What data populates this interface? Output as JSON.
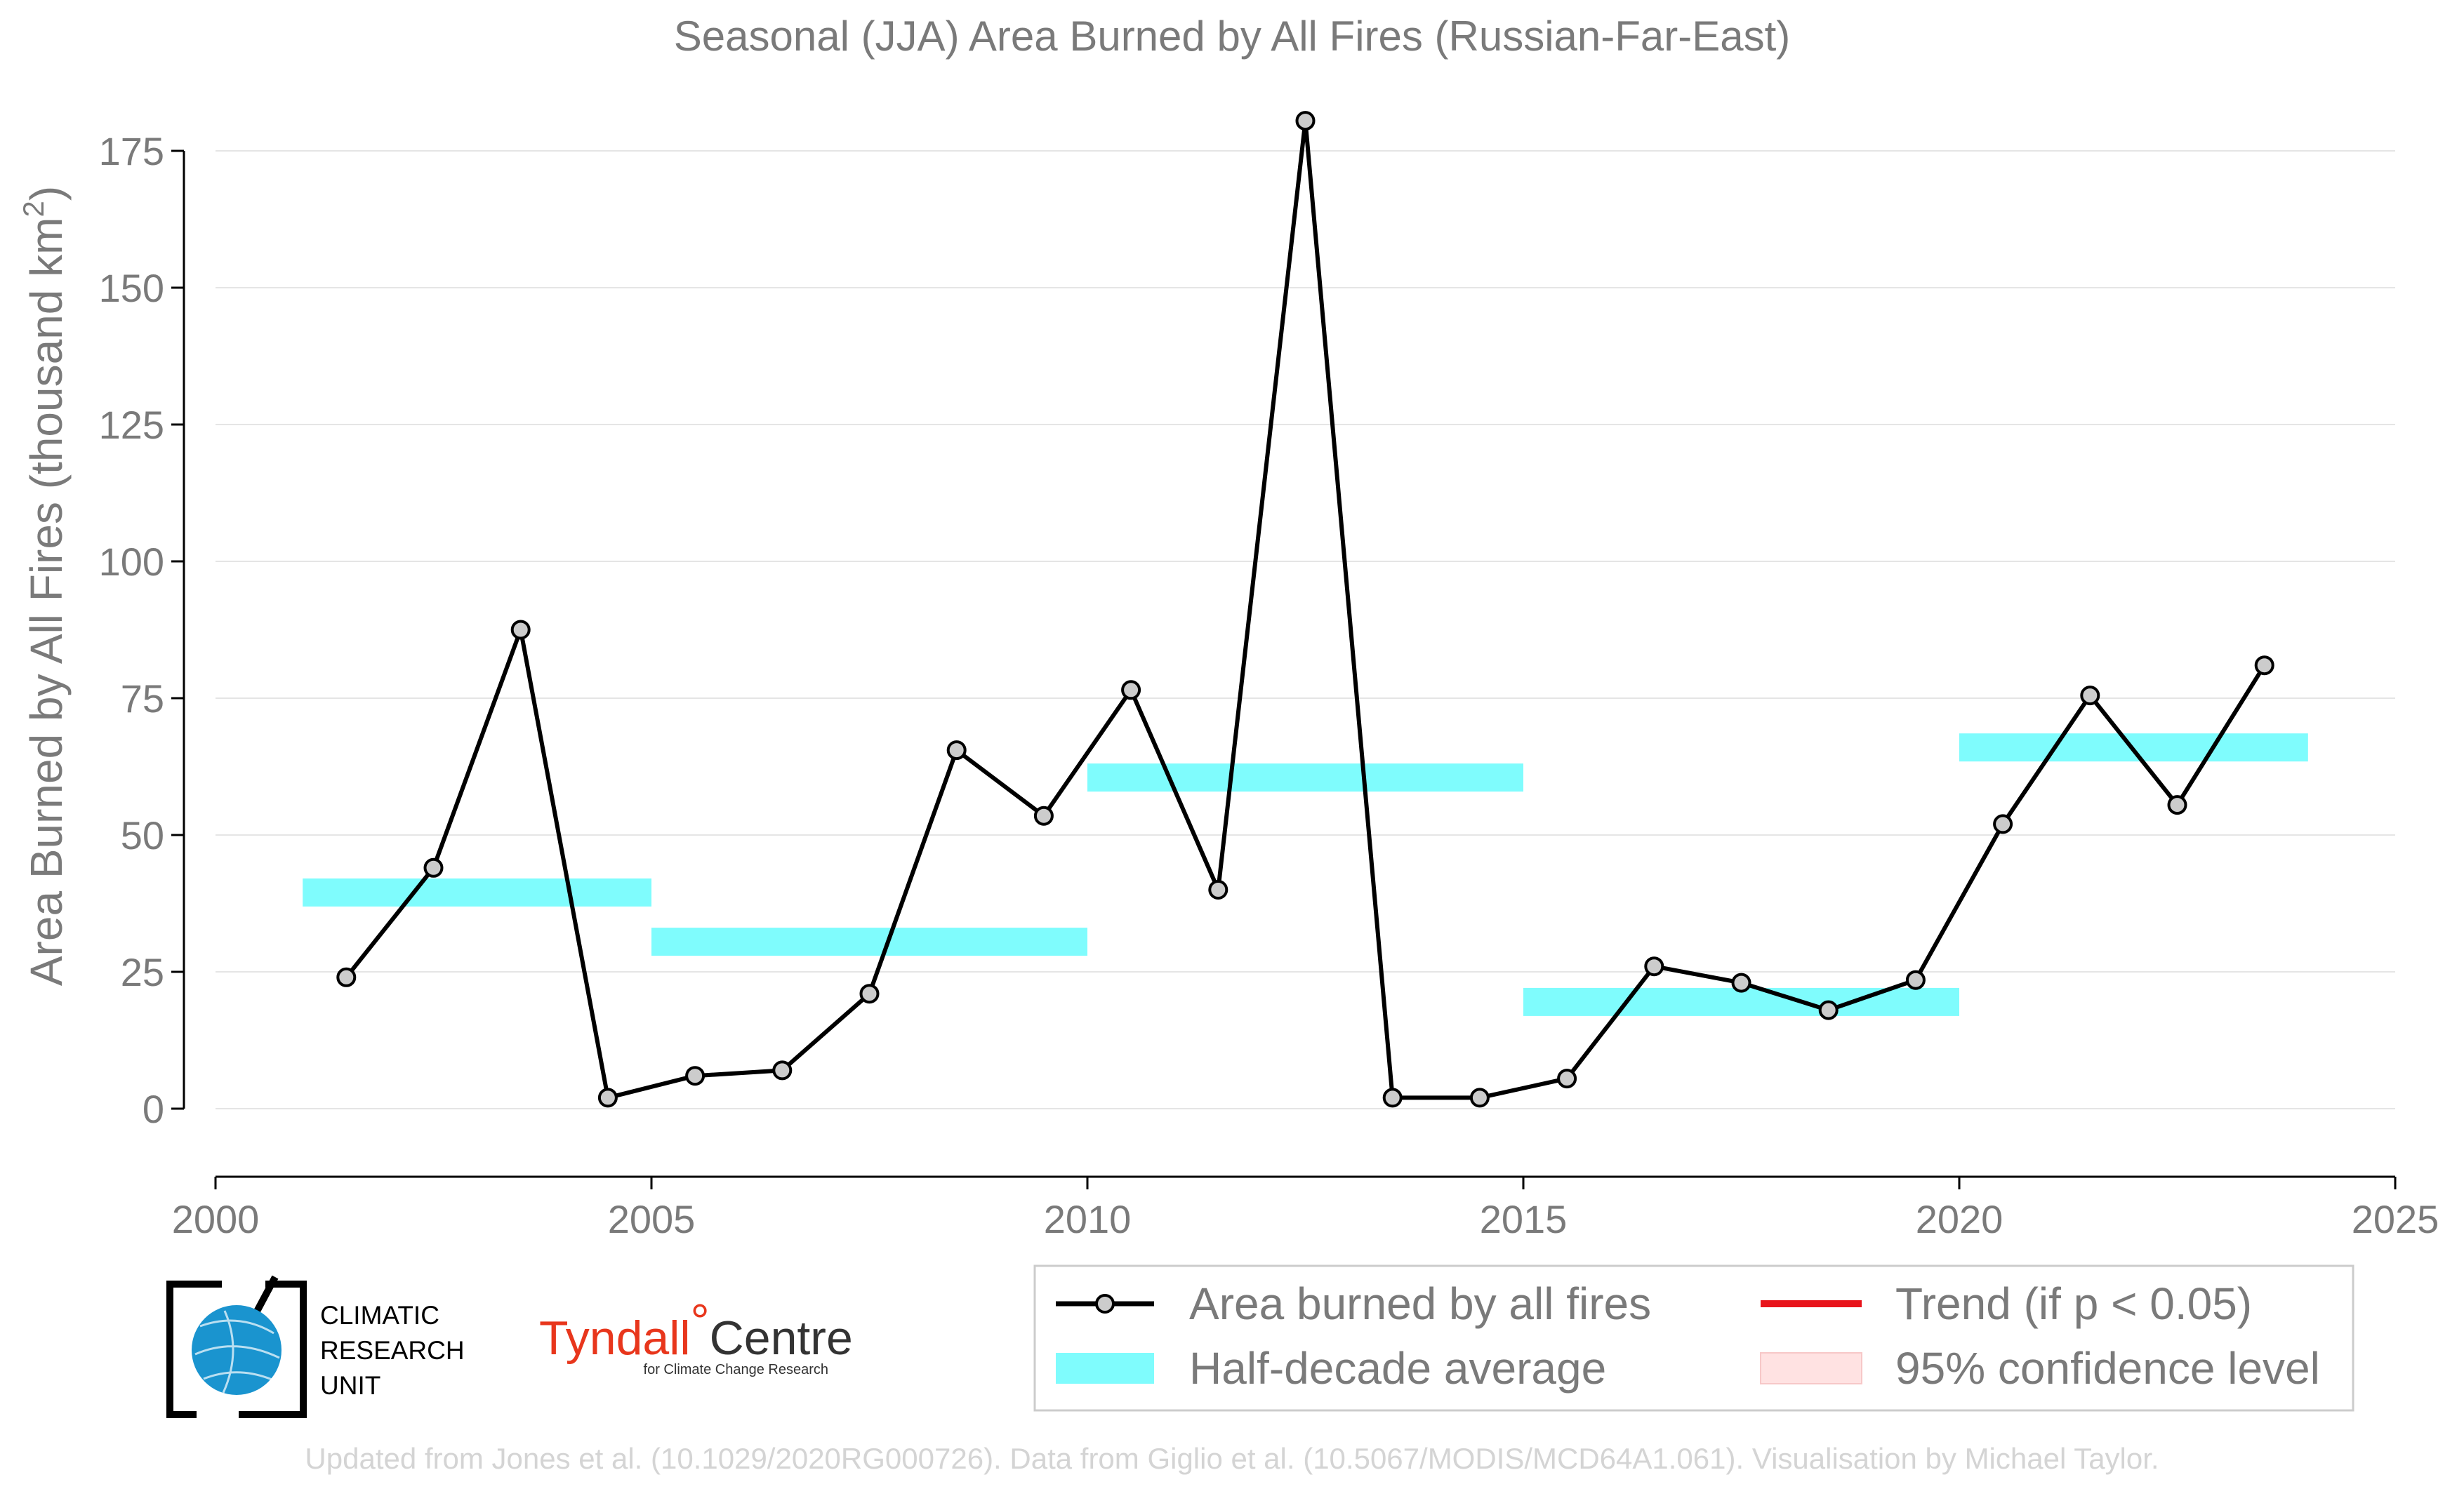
{
  "title": "Seasonal (JJA) Area Burned by All Fires (Russian-Far-East)",
  "credit": "Updated from Jones et al. (10.1029/2020RG000726). Data from Giglio et al. (10.5067/MODIS/MCD64A1.061). Visualisation by Michael Taylor.",
  "logos": {
    "cru": [
      "CLIMATIC",
      "RESEARCH",
      "UNIT"
    ],
    "tyndall_name": "Tyndall",
    "tyndall_degree": "°",
    "tyndall_centre": "Centre",
    "tyndall_sub": "for Climate Change Research"
  },
  "legend": {
    "area": "Area burned by all fires",
    "half": "Half-decade average",
    "trend": "Trend (if p < 0.05)",
    "conf": "95% confidence level"
  },
  "colors": {
    "line": "#000000",
    "marker_fill": "#cccccc",
    "half_decade": "#7ffcfd",
    "trend": "#e8141b",
    "confidence": "#ffe2e2",
    "grid": "#e5e5e5",
    "axis": "#000000"
  },
  "chart_data": {
    "type": "line",
    "title": "Seasonal (JJA) Area Burned by All Fires (Russian-Far-East)",
    "xlabel": "",
    "ylabel": "Area Burned by All Fires (thousand km²)",
    "ylabel_main": "Area Burned by All Fires (thousand km",
    "ylabel_sup": "2",
    "ylabel_end": ")",
    "xlim": [
      2000,
      2025
    ],
    "ylim": [
      -12,
      180
    ],
    "x_ticks": [
      2000,
      2005,
      2010,
      2015,
      2020,
      2025
    ],
    "y_ticks": [
      0,
      25,
      50,
      75,
      100,
      125,
      150,
      175
    ],
    "grid": true,
    "legend_position": "bottom-right",
    "series": [
      {
        "name": "Area burned by all fires",
        "type": "line",
        "x": [
          2001.5,
          2002.5,
          2003.5,
          2004.5,
          2005.5,
          2006.5,
          2007.5,
          2008.5,
          2009.5,
          2010.5,
          2011.5,
          2012.5,
          2013.5,
          2014.5,
          2015.5,
          2016.5,
          2017.5,
          2018.5,
          2019.5,
          2020.5,
          2021.5,
          2022.5,
          2023.5
        ],
        "values": [
          24,
          44,
          87.5,
          2,
          6,
          7,
          21,
          65.5,
          53.5,
          76.5,
          40,
          180.5,
          2,
          2,
          5.5,
          26,
          23,
          18,
          23.5,
          52,
          75.5,
          55.5,
          81
        ]
      },
      {
        "name": "Half-decade average",
        "type": "step",
        "segments": [
          {
            "x0": 2001,
            "x1": 2005,
            "value": 39.5
          },
          {
            "x0": 2005,
            "x1": 2010,
            "value": 30.5
          },
          {
            "x0": 2010,
            "x1": 2015,
            "value": 60.5
          },
          {
            "x0": 2015,
            "x1": 2020,
            "value": 19.5
          },
          {
            "x0": 2020,
            "x1": 2024,
            "value": 66
          }
        ]
      }
    ]
  }
}
